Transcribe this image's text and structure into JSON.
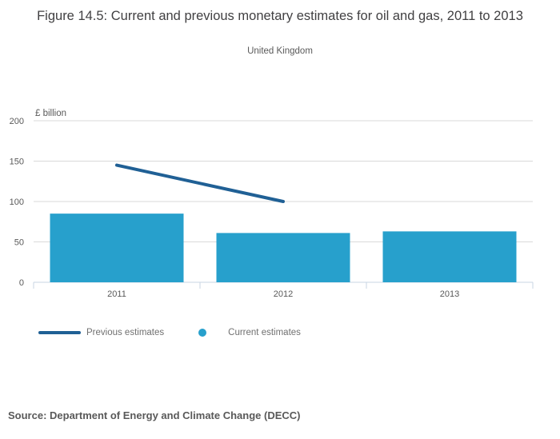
{
  "header": {
    "title": "Figure 14.5: Current and previous monetary estimates for oil and gas, 2011 to 2013",
    "subtitle": "United Kingdom"
  },
  "chart_data": {
    "type": "bar+line",
    "title": "Figure 14.5: Current and previous monetary estimates for oil and gas, 2011 to 2013",
    "subtitle": "United Kingdom",
    "unit_label": "£ billion",
    "categories": [
      "2011",
      "2012",
      "2013"
    ],
    "series": [
      {
        "name": "Previous estimates",
        "type": "line",
        "color": "#206095",
        "values": [
          145,
          100,
          null
        ]
      },
      {
        "name": "Current estimates",
        "type": "bar",
        "color": "#27A0CC",
        "values": [
          85,
          61,
          63
        ]
      }
    ],
    "ylim": [
      0,
      200
    ],
    "yticks": [
      0,
      50,
      100,
      150,
      200
    ],
    "grid": true,
    "legend_position": "bottom"
  },
  "legend": {
    "items": [
      {
        "label": "Previous estimates",
        "swatch": "line",
        "color": "#206095"
      },
      {
        "label": "Current estimates",
        "swatch": "circle",
        "color": "#27A0CC"
      }
    ]
  },
  "source": {
    "text": "Source: Department of Energy and Climate Change (DECC)"
  },
  "colors": {
    "line_series": "#206095",
    "bar_series": "#27A0CC",
    "gridline": "#d9d9d9",
    "axis": "#c9d5e3",
    "text_muted": "#595959"
  }
}
